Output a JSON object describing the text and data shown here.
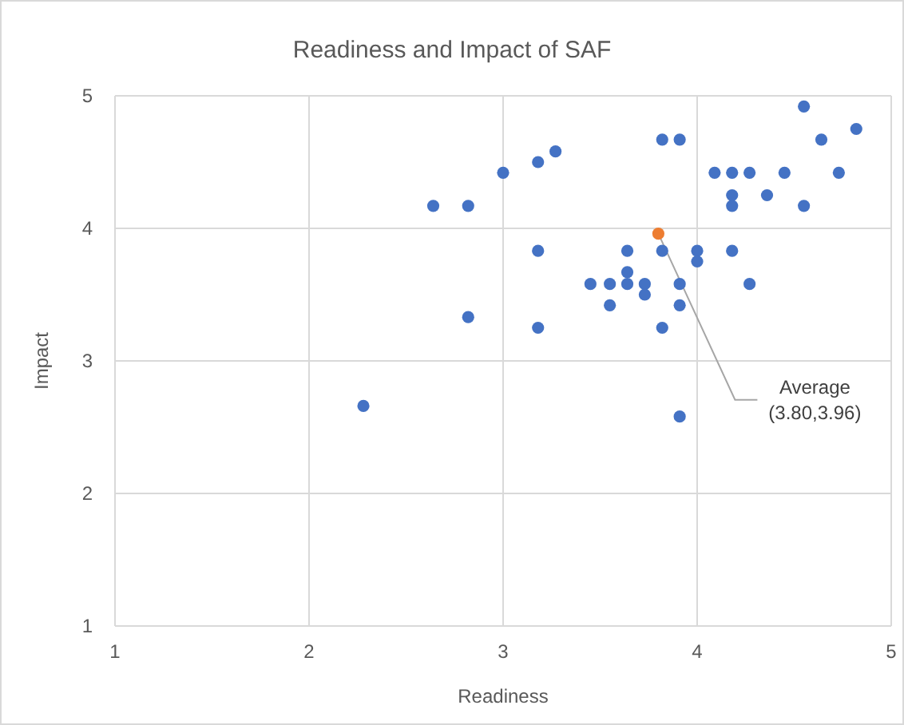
{
  "chart_data": {
    "type": "scatter",
    "title": "Readiness and Impact of SAF",
    "xlabel": "Readiness",
    "ylabel": "Impact",
    "xlim": [
      1,
      5
    ],
    "xticks": [
      1,
      2,
      3,
      4,
      5
    ],
    "ylim": [
      1,
      5
    ],
    "yticks": [
      1,
      2,
      3,
      4,
      5
    ],
    "grid": true,
    "marker": "circle",
    "series": [
      {
        "color": "#4472c4",
        "x": [
          2.28,
          2.64,
          2.82,
          2.82,
          3.0,
          3.18,
          3.27,
          3.18,
          3.18,
          3.82,
          3.91,
          3.82,
          3.64,
          3.64,
          3.45,
          3.55,
          3.64,
          3.73,
          3.91,
          3.73,
          3.55,
          3.91,
          3.82,
          4.0,
          4.0,
          4.18,
          4.27,
          3.91,
          4.09,
          4.18,
          4.27,
          4.45,
          4.73,
          4.18,
          4.18,
          4.36,
          4.55,
          4.64,
          4.82,
          4.55
        ],
        "values": [
          2.66,
          4.17,
          4.17,
          3.33,
          4.42,
          4.5,
          4.58,
          3.83,
          3.25,
          4.67,
          4.67,
          3.83,
          3.83,
          3.67,
          3.58,
          3.58,
          3.58,
          3.58,
          3.58,
          3.5,
          3.42,
          3.42,
          3.25,
          3.83,
          3.75,
          3.83,
          3.58,
          2.58,
          4.42,
          4.42,
          4.42,
          4.42,
          4.42,
          4.25,
          4.17,
          4.25,
          4.92,
          4.67,
          4.75,
          4.17
        ]
      },
      {
        "color": "#ed7d31",
        "x": [
          3.8
        ],
        "values": [
          3.96
        ]
      }
    ],
    "annotations": [
      {
        "text": "Average\n(3.80,3.96)",
        "x": 3.8,
        "y": 3.96
      }
    ]
  }
}
